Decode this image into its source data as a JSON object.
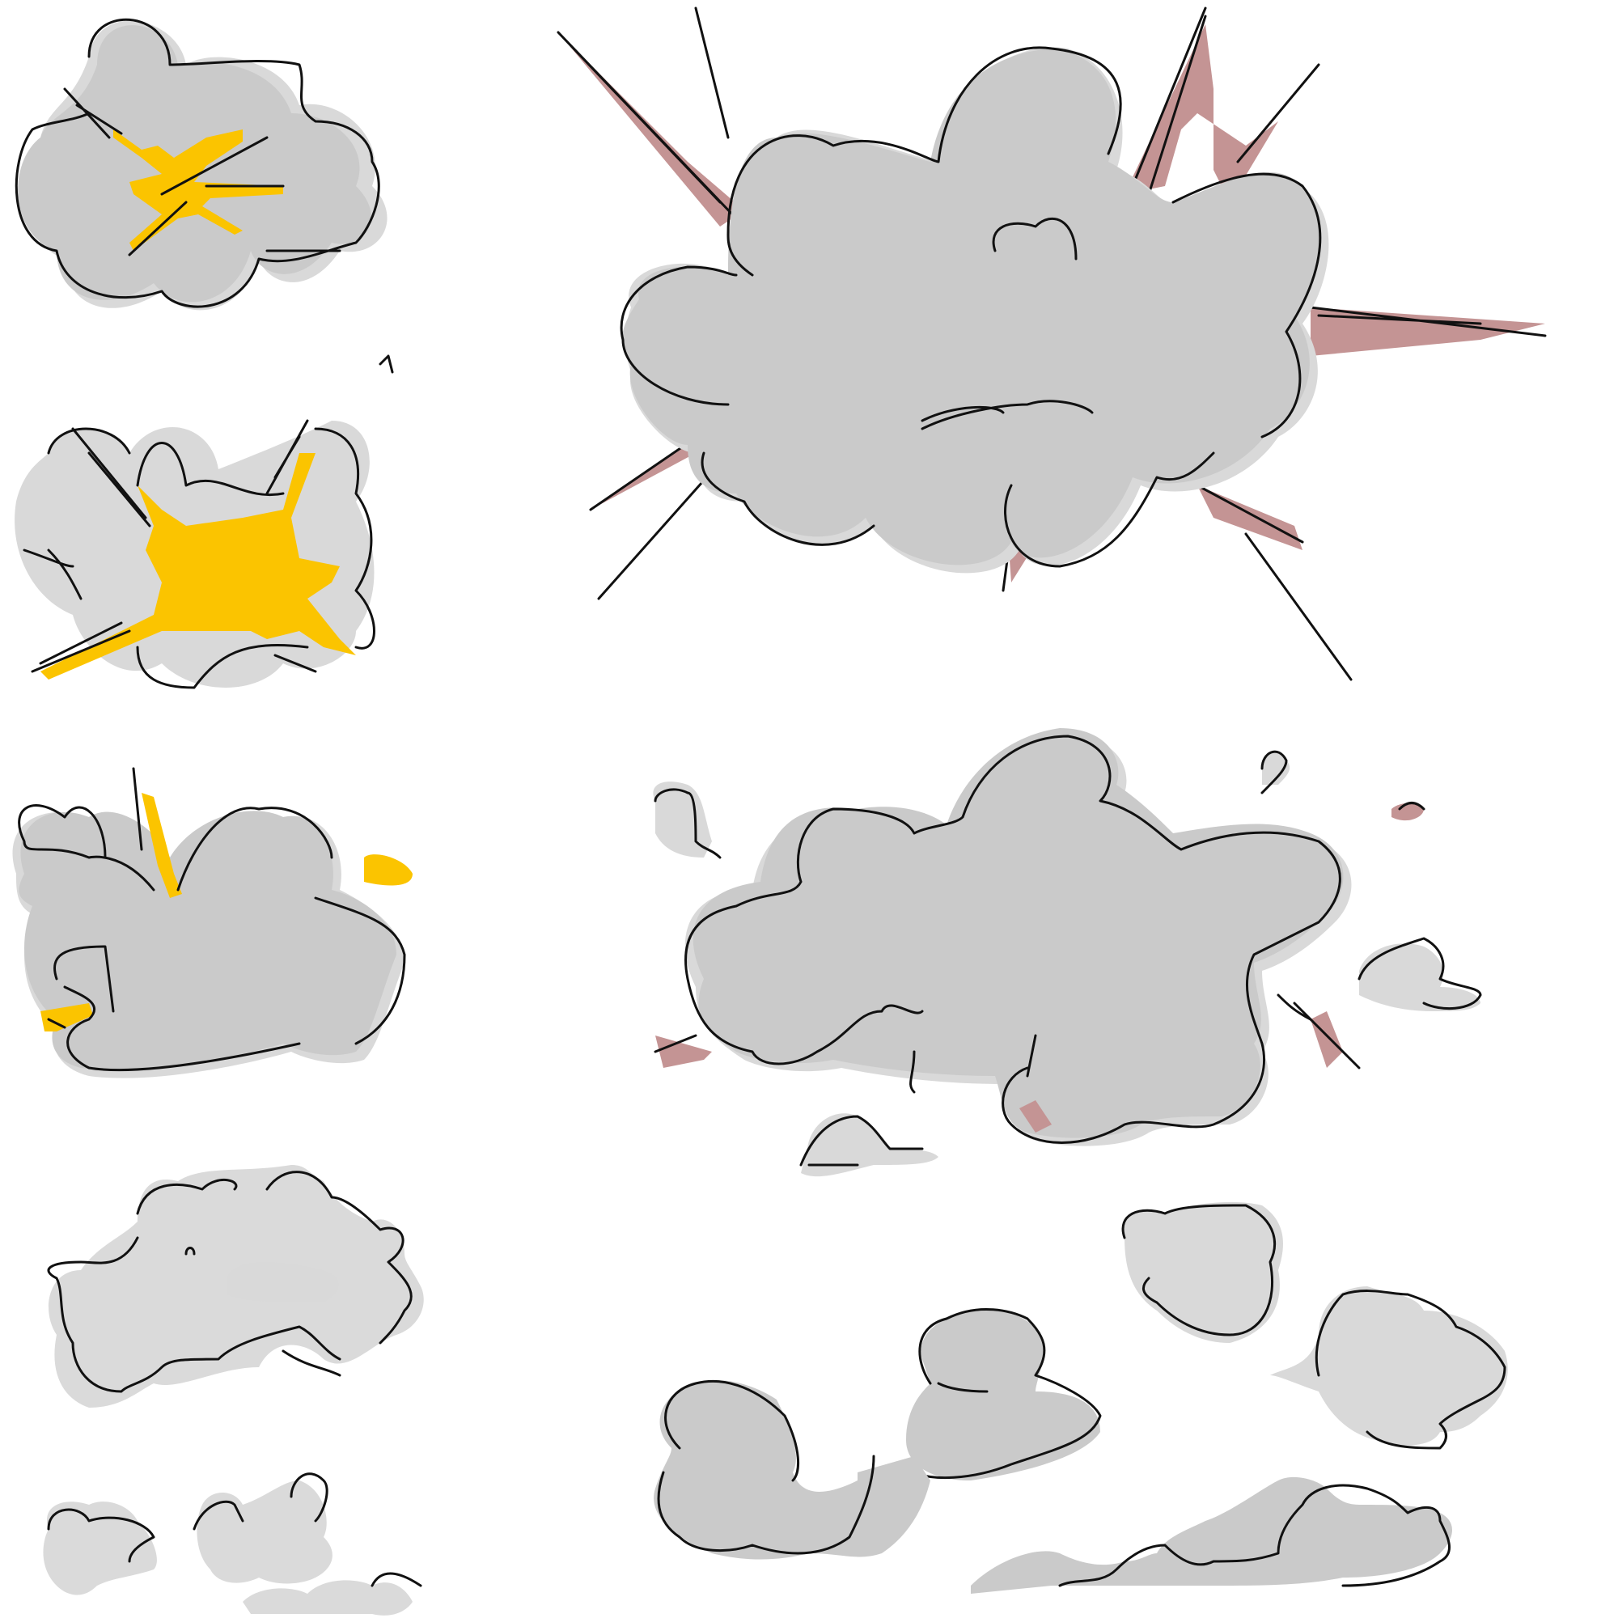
{
  "illustration": {
    "background": "#ffffff",
    "colors": {
      "smoke": "#cacaca",
      "smoke_shadow": "#d9d9d9",
      "outline": "#111111",
      "small_explosion_flash": "#fbc400",
      "large_explosion_flash": "#c49494"
    },
    "left_column_frames": [
      "explosion-start",
      "explosion-peak",
      "smoke-rising",
      "smoke-thinning",
      "smoke-dissipating"
    ],
    "right_column_frames": [
      "large-explosion",
      "large-smoke-cloud",
      "drifting-smoke-puffs"
    ]
  }
}
